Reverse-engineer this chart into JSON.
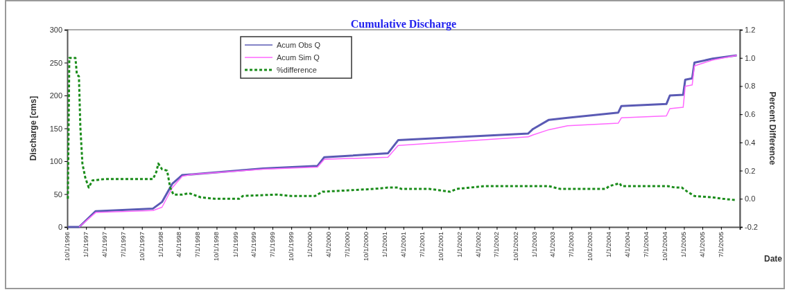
{
  "chart_data": {
    "type": "line",
    "title": "Cumulative Discharge",
    "xlabel": "Date",
    "ylabel": "Discharge [cms]",
    "y2label": "Percent Difference",
    "xlim": [
      "1996-10-01",
      "2005-10-01"
    ],
    "xticks": [
      {
        "value": "1996-10-01",
        "label": "10/1/1996"
      },
      {
        "value": "1997-01-01",
        "label": "1/1/1997"
      },
      {
        "value": "1997-04-01",
        "label": "4/1/1997"
      },
      {
        "value": "1997-07-01",
        "label": "7/1/1997"
      },
      {
        "value": "1997-10-01",
        "label": "10/1/1997"
      },
      {
        "value": "1998-01-01",
        "label": "1/1/1998"
      },
      {
        "value": "1998-04-01",
        "label": "4/1/1998"
      },
      {
        "value": "1998-07-01",
        "label": "7/1/1998"
      },
      {
        "value": "1998-10-01",
        "label": "10/1/1998"
      },
      {
        "value": "1999-01-01",
        "label": "1/1/1999"
      },
      {
        "value": "1999-04-01",
        "label": "4/1/1999"
      },
      {
        "value": "1999-07-01",
        "label": "7/1/1999"
      },
      {
        "value": "1999-10-01",
        "label": "10/1/1999"
      },
      {
        "value": "2000-01-01",
        "label": "1/1/2000"
      },
      {
        "value": "2000-04-01",
        "label": "4/1/2000"
      },
      {
        "value": "2000-07-01",
        "label": "7/1/2000"
      },
      {
        "value": "2000-10-01",
        "label": "10/1/2000"
      },
      {
        "value": "2001-01-01",
        "label": "1/1/2001"
      },
      {
        "value": "2001-04-01",
        "label": "4/1/2001"
      },
      {
        "value": "2001-07-01",
        "label": "7/1/2001"
      },
      {
        "value": "2001-10-01",
        "label": "10/1/2001"
      },
      {
        "value": "2002-01-01",
        "label": "1/1/2002"
      },
      {
        "value": "2002-04-01",
        "label": "4/1/2002"
      },
      {
        "value": "2002-07-01",
        "label": "7/1/2002"
      },
      {
        "value": "2002-10-01",
        "label": "10/1/2002"
      },
      {
        "value": "2003-01-01",
        "label": "1/1/2003"
      },
      {
        "value": "2003-04-01",
        "label": "4/1/2003"
      },
      {
        "value": "2003-07-01",
        "label": "7/1/2003"
      },
      {
        "value": "2003-10-01",
        "label": "10/1/2003"
      },
      {
        "value": "2004-01-01",
        "label": "1/1/2004"
      },
      {
        "value": "2004-04-01",
        "label": "4/1/2004"
      },
      {
        "value": "2004-07-01",
        "label": "7/1/2004"
      },
      {
        "value": "2004-10-01",
        "label": "10/1/2004"
      },
      {
        "value": "2005-01-01",
        "label": "1/1/2005"
      },
      {
        "value": "2005-04-01",
        "label": "4/1/2005"
      },
      {
        "value": "2005-07-01",
        "label": "7/1/2005"
      },
      {
        "value": "2005-10-01",
        "label": null
      }
    ],
    "ylim": [
      0,
      300
    ],
    "yticks": [
      0,
      50,
      100,
      150,
      200,
      250,
      300
    ],
    "y2lim": [
      -0.2,
      1.2
    ],
    "y2ticks": [
      -0.2,
      {
        "value": 0,
        "label": "0.0"
      },
      0.2,
      0.4,
      0.6,
      0.8,
      {
        "value": 1,
        "label": "1.0"
      },
      1.2
    ],
    "grid": false,
    "legend": "top left",
    "series": [
      {
        "name": "Acum Obs Q",
        "color": "#5a5ab4",
        "line_style": "solid",
        "x": [
          "1996-10-04",
          "1996-11-28",
          "1997-02-17",
          "1997-11-24",
          "1998-01-07",
          "1998-02-27",
          "1998-04-16",
          "1998-06-03",
          "1999-05-16",
          "2000-02-06",
          "2000-03-10",
          "2001-01-15",
          "2001-03-06",
          "2002-12-01",
          "2002-12-25",
          "2003-03-13",
          "2003-06-12",
          "2004-02-15",
          "2004-03-01",
          "2004-10-07",
          "2004-10-24",
          "2004-12-28",
          "2005-01-07",
          "2005-02-10",
          "2005-02-21",
          "2005-05-21",
          "2005-09-16"
        ],
        "values": [
          0,
          0,
          24,
          28,
          38,
          66,
          79,
          80,
          89,
          93,
          106,
          112,
          132,
          142,
          149,
          163,
          166,
          174,
          184,
          187,
          200,
          201,
          224,
          226,
          250,
          256,
          261
        ]
      },
      {
        "name": "Acum Sim Q",
        "color": "#ff66ff",
        "line_style": "solid",
        "x": [
          "1996-11-28",
          "1997-02-17",
          "1997-11-24",
          "1998-01-07",
          "1998-02-27",
          "1998-04-16",
          "1998-06-03",
          "1999-05-16",
          "2000-02-06",
          "2000-03-10",
          "2001-01-15",
          "2001-03-06",
          "2002-12-01",
          "2002-12-25",
          "2003-03-13",
          "2003-06-12",
          "2004-02-15",
          "2004-03-01",
          "2004-10-07",
          "2004-10-24",
          "2004-12-28",
          "2005-01-07",
          "2005-02-10",
          "2005-02-21",
          "2005-05-21",
          "2005-09-16"
        ],
        "values": [
          0,
          22,
          25,
          30,
          60,
          77,
          80,
          88,
          91,
          103,
          106,
          124,
          137,
          140,
          148,
          154,
          158,
          166,
          169,
          180,
          182,
          214,
          216,
          245,
          254,
          261
        ]
      },
      {
        "name": "%difference",
        "color": "#1a8c1a",
        "line_style": "dashed",
        "axis": "y2",
        "x": [
          "1996-10-04",
          "1996-10-11",
          "1996-11-10",
          "1996-11-17",
          "1996-11-27",
          "1996-12-04",
          "1996-12-14",
          "1996-12-28",
          "1997-01-14",
          "1997-02-01",
          "1997-04-01",
          "1997-11-24",
          "1997-12-10",
          "1997-12-20",
          "1998-01-07",
          "1998-02-01",
          "1998-02-16",
          "1998-03-04",
          "1998-04-16",
          "1998-05-19",
          "1998-07-16",
          "1998-09-23",
          "1999-01-19",
          "1999-02-06",
          "1999-07-22",
          "1999-10-01",
          "2000-01-25",
          "2000-03-01",
          "2000-11-10",
          "2001-01-15",
          "2001-03-06",
          "2001-03-22",
          "2001-08-06",
          "2001-11-15",
          "2001-12-18",
          "2002-05-01",
          "2002-11-21",
          "2003-03-13",
          "2003-05-07",
          "2003-12-16",
          "2004-01-01",
          "2004-02-22",
          "2004-03-01",
          "2004-10-13",
          "2004-11-18",
          "2004-12-21",
          "2005-01-18",
          "2005-02-21",
          "2005-05-21",
          "2005-07-10",
          "2005-09-16"
        ],
        "values": [
          0.0,
          1.0,
          1.0,
          0.88,
          0.87,
          0.51,
          0.25,
          0.15,
          0.08,
          0.13,
          0.14,
          0.14,
          0.19,
          0.25,
          0.21,
          0.2,
          0.08,
          0.03,
          0.03,
          0.04,
          0.01,
          0.0,
          0.0,
          0.02,
          0.03,
          0.02,
          0.02,
          0.05,
          0.07,
          0.08,
          0.08,
          0.07,
          0.07,
          0.05,
          0.07,
          0.09,
          0.09,
          0.09,
          0.07,
          0.07,
          0.09,
          0.11,
          0.09,
          0.09,
          0.08,
          0.08,
          0.05,
          0.02,
          0.01,
          0.0,
          -0.01
        ]
      }
    ]
  }
}
